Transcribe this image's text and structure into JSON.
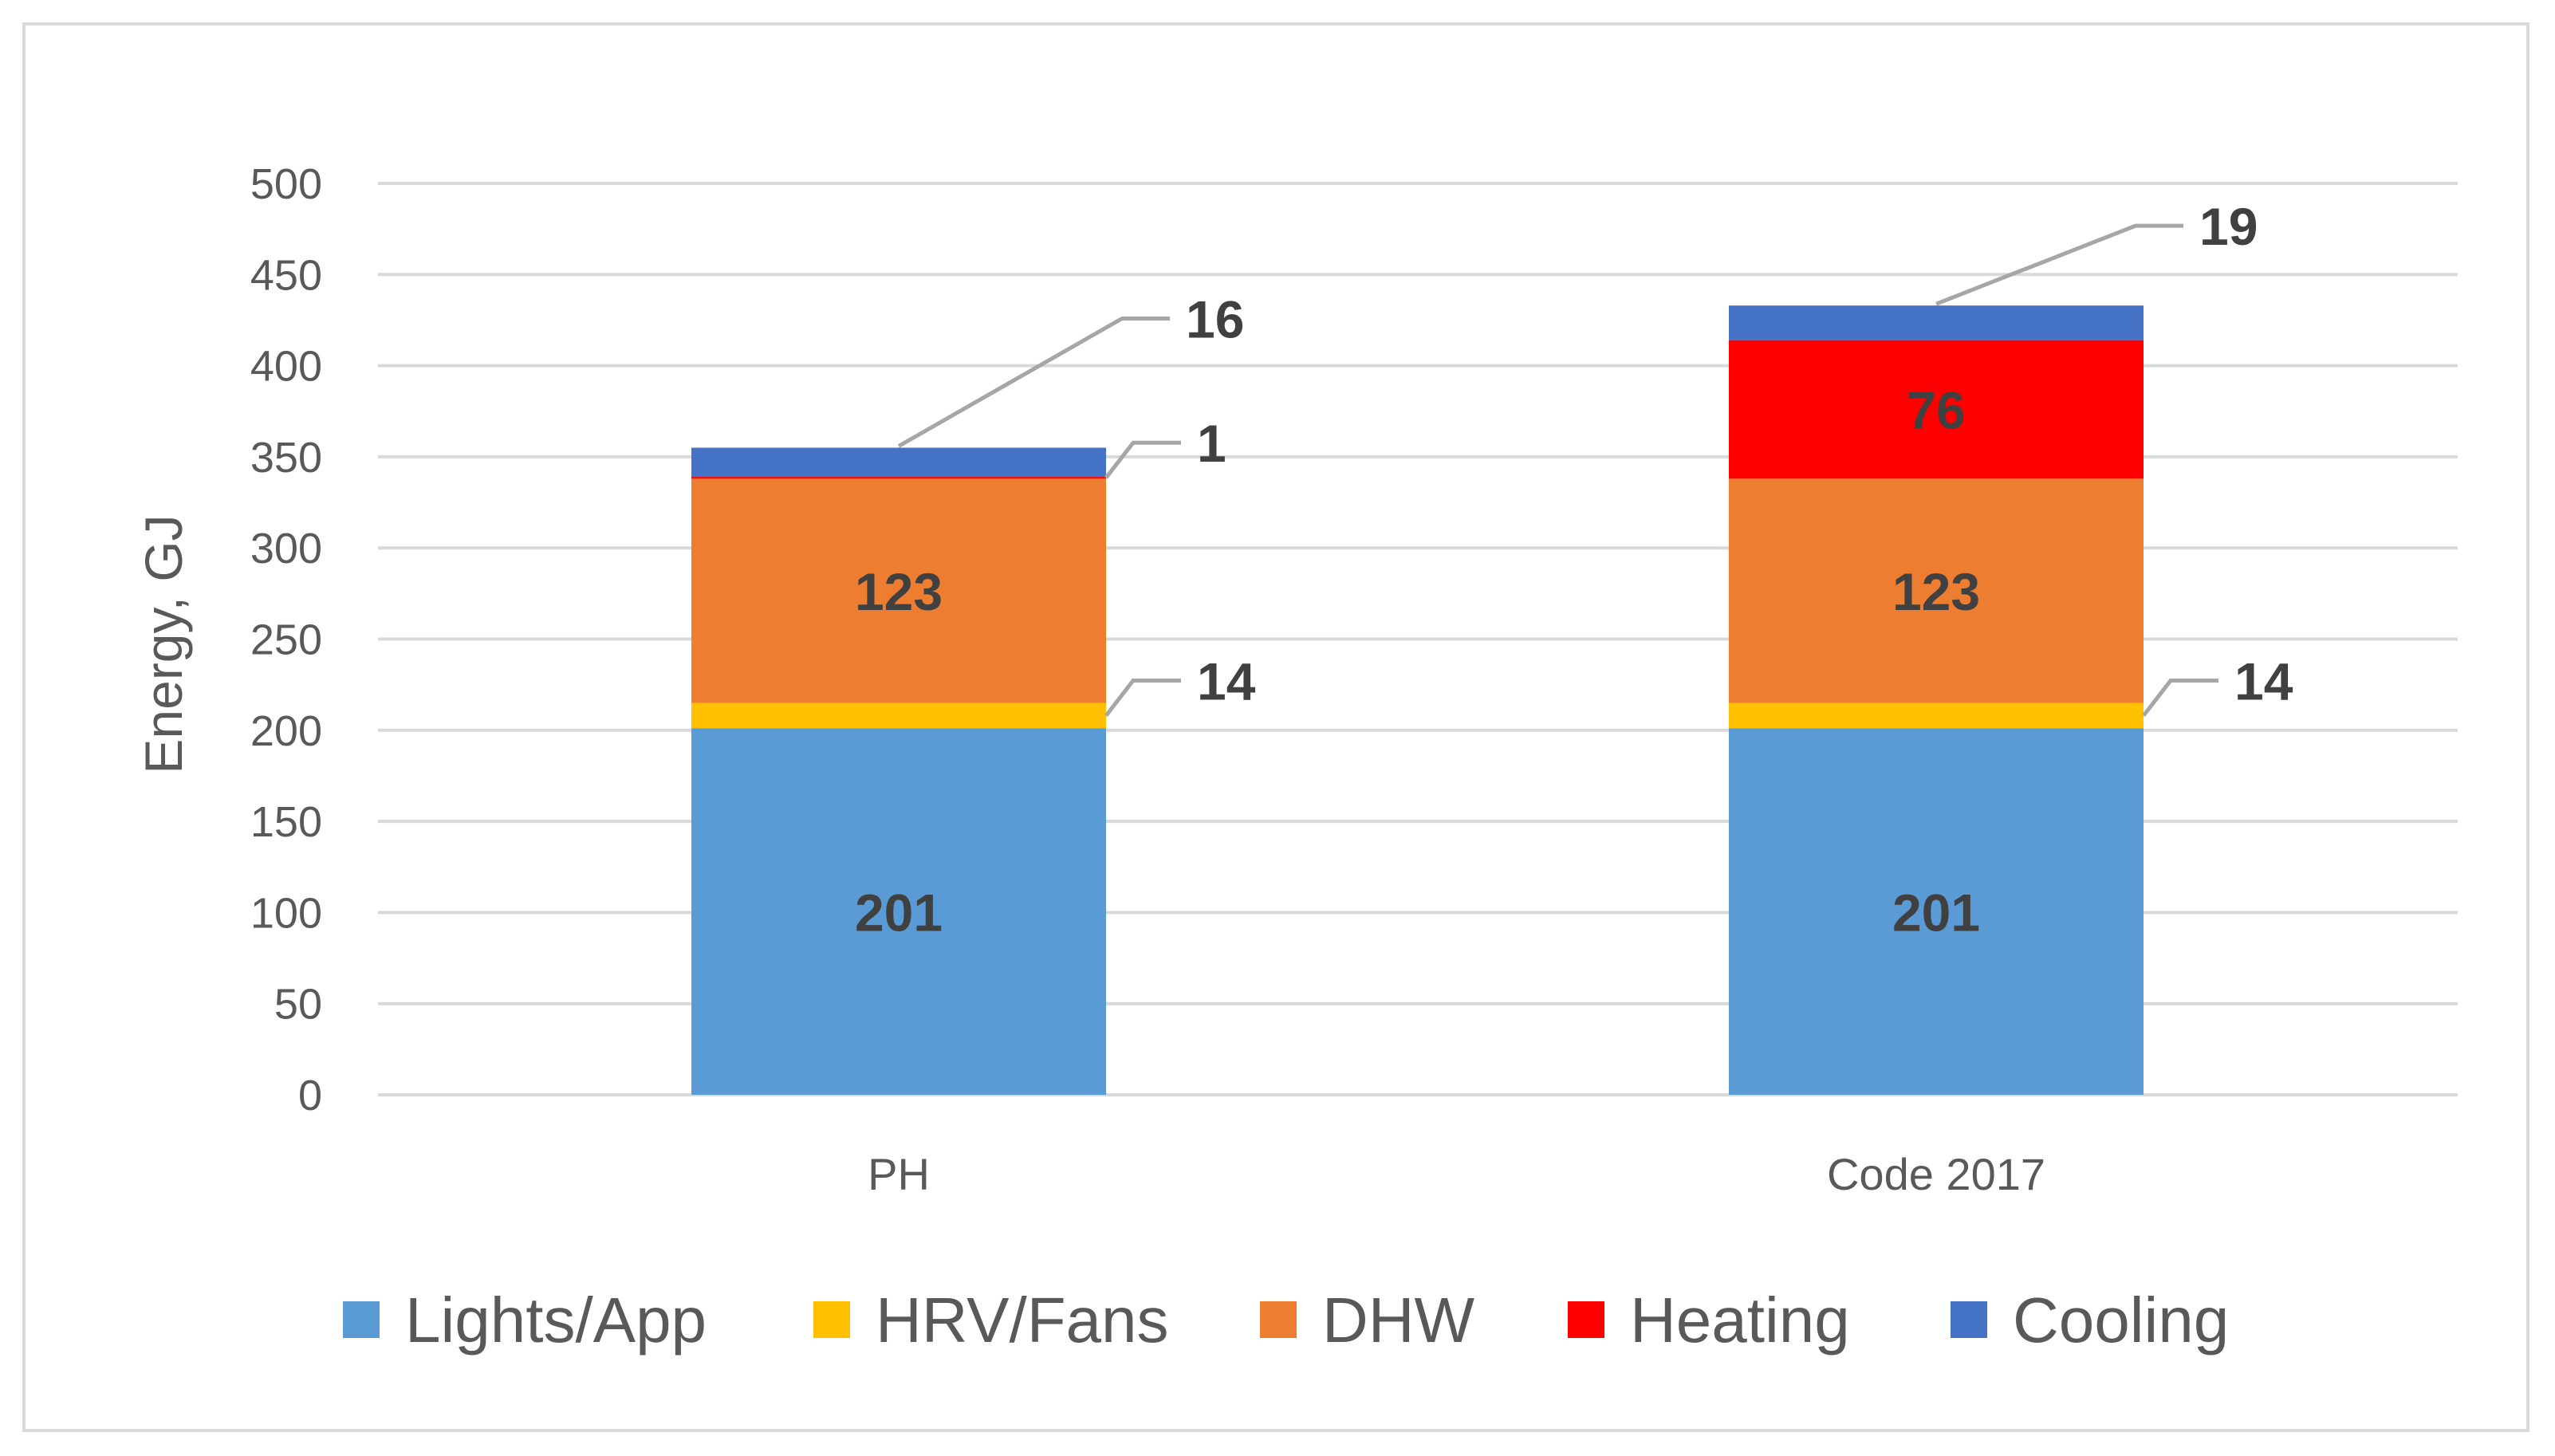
{
  "chart_data": {
    "type": "bar",
    "stacked": true,
    "categories": [
      "PH",
      "Code 2017"
    ],
    "series": [
      {
        "name": "Lights/App",
        "color": "#5b9bd5",
        "values": [
          201,
          201
        ],
        "labels": [
          "201",
          "201"
        ]
      },
      {
        "name": "HRV/Fans",
        "color": "#ffc000",
        "values": [
          14,
          14
        ],
        "labels": [
          "14",
          "14"
        ]
      },
      {
        "name": "DHW",
        "color": "#ed7d31",
        "values": [
          123,
          123
        ],
        "labels": [
          "123",
          "123"
        ]
      },
      {
        "name": "Heating",
        "color": "#ff0000",
        "values": [
          1,
          76
        ],
        "labels": [
          "1",
          "76"
        ]
      },
      {
        "name": "Cooling",
        "color": "#4472c4",
        "values": [
          16,
          19
        ],
        "labels": [
          "16",
          "19"
        ]
      }
    ],
    "ylabel": "Energy, GJ",
    "xlabel": "",
    "ylim": [
      0,
      500
    ],
    "yticks": [
      0,
      50,
      100,
      150,
      200,
      250,
      300,
      350,
      400,
      450,
      500
    ],
    "grid": true,
    "legend_position": "bottom"
  }
}
